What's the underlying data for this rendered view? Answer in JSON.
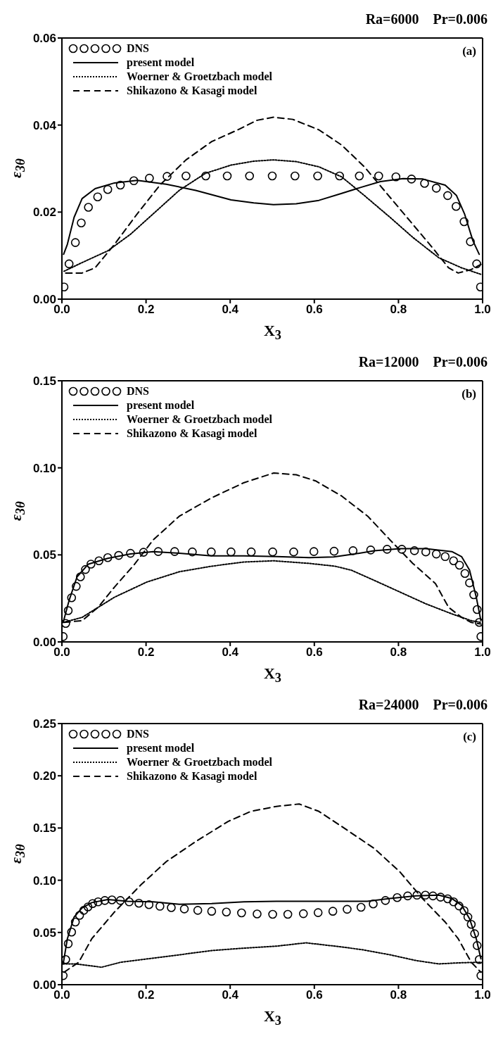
{
  "chart_data": [
    {
      "type": "line",
      "title": "Ra=6000    Pr=0.006",
      "xlabel": "X$_{3}$",
      "ylabel": "ε$_{3θ}$",
      "annotations": [
        "(a)"
      ],
      "legend": "top left",
      "xlim": [
        0,
        1
      ],
      "ylim": [
        0,
        0.06
      ],
      "xticks": [
        {
          "value": 0,
          "label": "0.0"
        },
        {
          "value": 0.2,
          "label": "0.2"
        },
        {
          "value": 0.4,
          "label": "0.4"
        },
        {
          "value": 0.6,
          "label": "0.6"
        },
        {
          "value": 0.8,
          "label": "0.8"
        },
        {
          "value": 1,
          "label": "1.0"
        }
      ],
      "yticks": [
        {
          "value": 0,
          "label": "0.00"
        },
        {
          "value": 0.02,
          "label": "0.02"
        },
        {
          "value": 0.04,
          "label": "0.04"
        },
        {
          "value": 0.06,
          "label": "0.06"
        }
      ],
      "series": [
        {
          "name": "DNS",
          "type": "scatter",
          "marker": "circle",
          "color": "#000000",
          "x": [
            0.005,
            0.017,
            0.032,
            0.046,
            0.063,
            0.085,
            0.109,
            0.139,
            0.171,
            0.208,
            0.25,
            0.295,
            0.342,
            0.393,
            0.446,
            0.5,
            0.554,
            0.608,
            0.66,
            0.707,
            0.753,
            0.794,
            0.831,
            0.862,
            0.89,
            0.917,
            0.937,
            0.956,
            0.971,
            0.986,
            0.995
          ],
          "values": [
            0.0028,
            0.0081,
            0.013,
            0.0175,
            0.0211,
            0.0235,
            0.0252,
            0.0262,
            0.0272,
            0.0278,
            0.0282,
            0.0283,
            0.0283,
            0.0283,
            0.0283,
            0.0283,
            0.0283,
            0.0283,
            0.0283,
            0.0283,
            0.0283,
            0.0281,
            0.0276,
            0.0266,
            0.0255,
            0.0238,
            0.0213,
            0.0178,
            0.0132,
            0.0081,
            0.0028
          ]
        },
        {
          "name": "present model",
          "line_style": "solid",
          "color": "#000000",
          "x": [
            0.004,
            0.013,
            0.029,
            0.048,
            0.079,
            0.125,
            0.179,
            0.248,
            0.318,
            0.402,
            0.456,
            0.503,
            0.557,
            0.611,
            0.665,
            0.711,
            0.757,
            0.811,
            0.857,
            0.911,
            0.938,
            0.957,
            0.977,
            0.992
          ],
          "values": [
            0.0103,
            0.0126,
            0.0188,
            0.0231,
            0.0254,
            0.0267,
            0.0273,
            0.0264,
            0.025,
            0.0228,
            0.0221,
            0.0217,
            0.0219,
            0.0227,
            0.0243,
            0.0257,
            0.027,
            0.0277,
            0.0276,
            0.0262,
            0.0238,
            0.0196,
            0.0134,
            0.0103
          ]
        },
        {
          "name": "Woerner & Groetzbach model",
          "line_style": "dotted",
          "color": "#000000",
          "x": [
            0.005,
            0.048,
            0.109,
            0.163,
            0.217,
            0.279,
            0.341,
            0.402,
            0.456,
            0.503,
            0.557,
            0.611,
            0.665,
            0.719,
            0.78,
            0.834,
            0.896,
            0.95,
            0.996
          ],
          "values": [
            0.0064,
            0.0084,
            0.0111,
            0.0149,
            0.0196,
            0.025,
            0.0289,
            0.0308,
            0.0317,
            0.032,
            0.0316,
            0.0304,
            0.0281,
            0.0238,
            0.0188,
            0.0142,
            0.0095,
            0.0072,
            0.0057
          ]
        },
        {
          "name": "Shikazono & Kasagi model",
          "line_style": "dashed",
          "color": "#000000",
          "x": [
            0.009,
            0.048,
            0.079,
            0.125,
            0.179,
            0.233,
            0.295,
            0.356,
            0.418,
            0.464,
            0.503,
            0.549,
            0.611,
            0.665,
            0.719,
            0.773,
            0.827,
            0.881,
            0.919,
            0.942,
            0.973,
            0.996
          ],
          "values": [
            0.006,
            0.006,
            0.0072,
            0.0126,
            0.0196,
            0.0262,
            0.032,
            0.0362,
            0.0389,
            0.0411,
            0.0418,
            0.0413,
            0.0389,
            0.0354,
            0.0304,
            0.0242,
            0.018,
            0.0118,
            0.0072,
            0.006,
            0.0068,
            0.008
          ]
        }
      ]
    },
    {
      "type": "line",
      "title": "Ra=12000    Pr=0.006",
      "xlabel": "X$_{3}$",
      "ylabel": "ε$_{3θ}$",
      "annotations": [
        "(b)"
      ],
      "legend": "top left",
      "xlim": [
        0,
        1
      ],
      "ylim": [
        0,
        0.15
      ],
      "xticks": [
        {
          "value": 0,
          "label": "0.0"
        },
        {
          "value": 0.2,
          "label": "0.2"
        },
        {
          "value": 0.4,
          "label": "0.4"
        },
        {
          "value": 0.6,
          "label": "0.6"
        },
        {
          "value": 0.8,
          "label": "0.8"
        },
        {
          "value": 1,
          "label": "1.0"
        }
      ],
      "yticks": [
        {
          "value": 0,
          "label": "0.00"
        },
        {
          "value": 0.05,
          "label": "0.05"
        },
        {
          "value": 0.1,
          "label": "0.10"
        },
        {
          "value": 0.15,
          "label": "0.15"
        }
      ],
      "series": [
        {
          "name": "DNS",
          "type": "scatter",
          "marker": "circle",
          "color": "#000000",
          "x": [
            0.003,
            0.009,
            0.015,
            0.023,
            0.034,
            0.044,
            0.056,
            0.069,
            0.088,
            0.109,
            0.135,
            0.163,
            0.194,
            0.229,
            0.268,
            0.31,
            0.355,
            0.402,
            0.45,
            0.501,
            0.551,
            0.599,
            0.647,
            0.692,
            0.734,
            0.773,
            0.808,
            0.838,
            0.865,
            0.89,
            0.911,
            0.931,
            0.945,
            0.958,
            0.969,
            0.979,
            0.987,
            0.992,
            0.996
          ],
          "values": [
            0.0031,
            0.0106,
            0.018,
            0.0254,
            0.0319,
            0.0374,
            0.0416,
            0.0447,
            0.0466,
            0.0484,
            0.0497,
            0.0509,
            0.0515,
            0.0519,
            0.0519,
            0.0517,
            0.0517,
            0.0517,
            0.0517,
            0.0517,
            0.0517,
            0.0519,
            0.0521,
            0.0524,
            0.0528,
            0.0532,
            0.0532,
            0.0524,
            0.0517,
            0.0505,
            0.049,
            0.0466,
            0.0441,
            0.0393,
            0.0339,
            0.0271,
            0.0186,
            0.0112,
            0.0031
          ]
        },
        {
          "name": "present model",
          "line_style": "solid",
          "color": "#000000",
          "x": [
            0.003,
            0.017,
            0.036,
            0.063,
            0.109,
            0.163,
            0.217,
            0.279,
            0.356,
            0.433,
            0.511,
            0.588,
            0.646,
            0.696,
            0.742,
            0.804,
            0.865,
            0.927,
            0.95,
            0.969,
            0.985,
            0.996
          ],
          "values": [
            0.0112,
            0.0238,
            0.0374,
            0.0447,
            0.048,
            0.0505,
            0.0519,
            0.0509,
            0.0494,
            0.0494,
            0.049,
            0.0484,
            0.0488,
            0.0505,
            0.0524,
            0.0536,
            0.0536,
            0.0519,
            0.049,
            0.0412,
            0.0257,
            0.0122
          ]
        },
        {
          "name": "Woerner & Groetzbach model",
          "line_style": "dotted",
          "color": "#000000",
          "x": [
            0.003,
            0.048,
            0.125,
            0.202,
            0.279,
            0.356,
            0.433,
            0.503,
            0.588,
            0.649,
            0.688,
            0.742,
            0.804,
            0.865,
            0.927,
            0.973,
            0.996
          ],
          "values": [
            0.0112,
            0.0141,
            0.0257,
            0.0344,
            0.0403,
            0.0435,
            0.0459,
            0.0466,
            0.0451,
            0.0435,
            0.0412,
            0.0354,
            0.0286,
            0.0219,
            0.0161,
            0.0122,
            0.0112
          ]
        },
        {
          "name": "Shikazono & Kasagi model",
          "line_style": "dashed",
          "color": "#000000",
          "x": [
            0.005,
            0.048,
            0.086,
            0.125,
            0.171,
            0.217,
            0.279,
            0.356,
            0.433,
            0.503,
            0.557,
            0.603,
            0.665,
            0.727,
            0.78,
            0.834,
            0.888,
            0.919,
            0.95,
            0.973,
            0.996
          ],
          "values": [
            0.0112,
            0.0122,
            0.0199,
            0.0315,
            0.0441,
            0.0586,
            0.0722,
            0.0828,
            0.0915,
            0.097,
            0.096,
            0.0925,
            0.0838,
            0.0722,
            0.0586,
            0.0451,
            0.0335,
            0.0199,
            0.0141,
            0.0112,
            0.0103
          ]
        }
      ]
    },
    {
      "type": "line",
      "title": "Ra=24000    Pr=0.006",
      "xlabel": "X$_{3}$",
      "ylabel": "ε$_{3θ}$",
      "annotations": [
        "(c)"
      ],
      "legend": "top left",
      "xlim": [
        0,
        1
      ],
      "ylim": [
        0,
        0.25
      ],
      "xticks": [
        {
          "value": 0,
          "label": "0.0"
        },
        {
          "value": 0.2,
          "label": "0.2"
        },
        {
          "value": 0.4,
          "label": "0.4"
        },
        {
          "value": 0.6,
          "label": "0.6"
        },
        {
          "value": 0.8,
          "label": "0.8"
        },
        {
          "value": 1,
          "label": "1.0"
        }
      ],
      "yticks": [
        {
          "value": 0,
          "label": "0.00"
        },
        {
          "value": 0.05,
          "label": "0.05"
        },
        {
          "value": 0.1,
          "label": "0.10"
        },
        {
          "value": 0.15,
          "label": "0.15"
        },
        {
          "value": 0.2,
          "label": "0.20"
        },
        {
          "value": 0.25,
          "label": "0.25"
        }
      ],
      "series": [
        {
          "name": "DNS",
          "type": "scatter",
          "marker": "circle",
          "color": "#000000",
          "x": [
            0.003,
            0.009,
            0.015,
            0.023,
            0.032,
            0.042,
            0.052,
            0.062,
            0.073,
            0.086,
            0.102,
            0.119,
            0.139,
            0.16,
            0.183,
            0.207,
            0.233,
            0.26,
            0.291,
            0.323,
            0.356,
            0.391,
            0.427,
            0.464,
            0.501,
            0.537,
            0.574,
            0.609,
            0.644,
            0.678,
            0.711,
            0.74,
            0.769,
            0.797,
            0.822,
            0.844,
            0.864,
            0.882,
            0.9,
            0.917,
            0.931,
            0.944,
            0.956,
            0.965,
            0.973,
            0.981,
            0.987,
            0.992,
            0.996
          ],
          "values": [
            0.0087,
            0.0241,
            0.0392,
            0.0504,
            0.06,
            0.0664,
            0.0712,
            0.0745,
            0.0777,
            0.0793,
            0.0806,
            0.0812,
            0.0806,
            0.0793,
            0.078,
            0.0767,
            0.0751,
            0.0738,
            0.0725,
            0.0712,
            0.0703,
            0.0696,
            0.0687,
            0.0677,
            0.0674,
            0.0674,
            0.068,
            0.069,
            0.0703,
            0.0722,
            0.0741,
            0.0773,
            0.0806,
            0.0834,
            0.085,
            0.0857,
            0.0857,
            0.085,
            0.0838,
            0.0822,
            0.0793,
            0.0754,
            0.0709,
            0.0648,
            0.0578,
            0.0488,
            0.0375,
            0.0241,
            0.0087
          ]
        },
        {
          "name": "present model",
          "line_style": "solid",
          "color": "#000000",
          "x": [
            0.003,
            0.013,
            0.029,
            0.048,
            0.071,
            0.109,
            0.156,
            0.217,
            0.279,
            0.356,
            0.433,
            0.51,
            0.588,
            0.665,
            0.726,
            0.78,
            0.842,
            0.896,
            0.927,
            0.95,
            0.969,
            0.985,
            0.996
          ],
          "values": [
            0.0199,
            0.044,
            0.0648,
            0.0735,
            0.0786,
            0.0815,
            0.0799,
            0.0793,
            0.077,
            0.0777,
            0.0793,
            0.0799,
            0.0799,
            0.0799,
            0.0799,
            0.0825,
            0.085,
            0.0857,
            0.0825,
            0.0761,
            0.0632,
            0.044,
            0.0247
          ]
        },
        {
          "name": "Woerner & Groetzbach model",
          "line_style": "dotted",
          "color": "#000000",
          "x": [
            0.003,
            0.032,
            0.094,
            0.14,
            0.202,
            0.279,
            0.356,
            0.433,
            0.51,
            0.58,
            0.649,
            0.711,
            0.78,
            0.842,
            0.896,
            0.942,
            0.996
          ],
          "values": [
            0.0199,
            0.0199,
            0.0167,
            0.0215,
            0.0247,
            0.0286,
            0.0327,
            0.035,
            0.0369,
            0.0401,
            0.0369,
            0.0337,
            0.0286,
            0.0231,
            0.0199,
            0.0209,
            0.0215
          ]
        },
        {
          "name": "Shikazono & Kasagi model",
          "line_style": "dashed",
          "color": "#000000",
          "x": [
            0.005,
            0.04,
            0.071,
            0.125,
            0.187,
            0.248,
            0.318,
            0.395,
            0.449,
            0.51,
            0.564,
            0.611,
            0.665,
            0.742,
            0.803,
            0.857,
            0.911,
            0.942,
            0.973,
            0.996
          ],
          "values": [
            0.0119,
            0.0215,
            0.044,
            0.0696,
            0.0953,
            0.1178,
            0.137,
            0.1563,
            0.1659,
            0.1707,
            0.173,
            0.1659,
            0.1515,
            0.1306,
            0.1082,
            0.0825,
            0.06,
            0.044,
            0.0215,
            0.0119
          ]
        }
      ]
    }
  ]
}
